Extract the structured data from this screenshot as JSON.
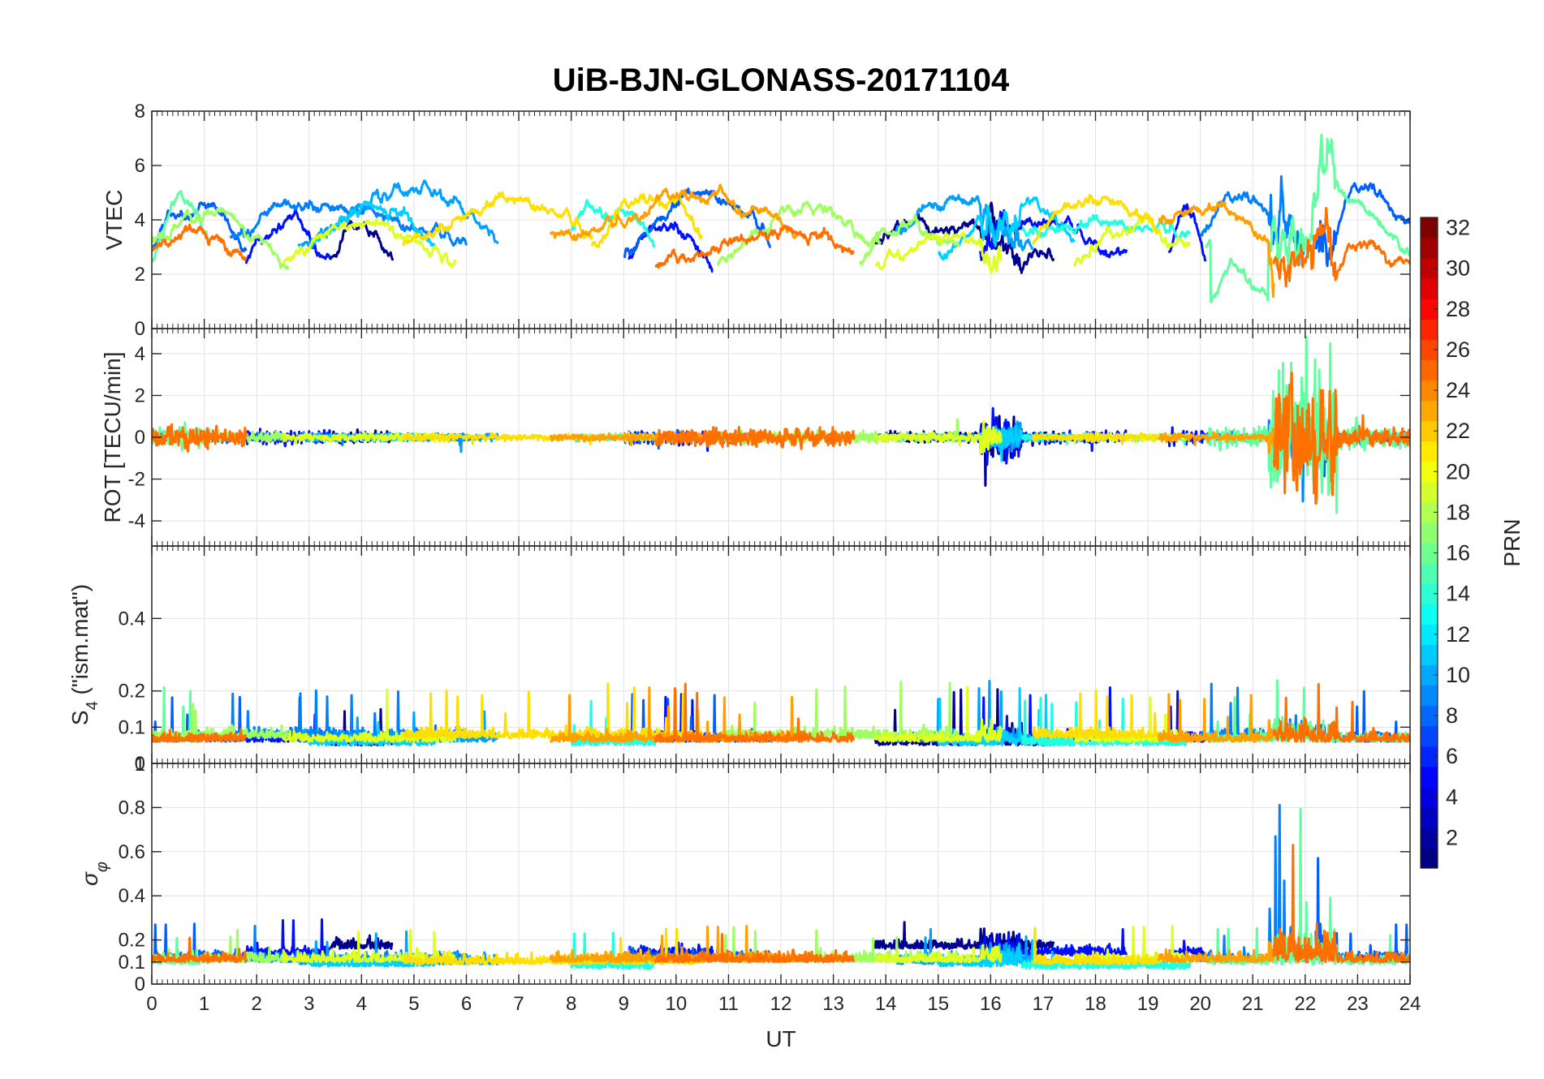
{
  "chart_data": {
    "type": "line",
    "title": "UiB-BJN-GLONASS-20171104",
    "xlabel": "UT",
    "xlim": [
      0,
      24
    ],
    "xticks": [
      0,
      1,
      2,
      3,
      4,
      5,
      6,
      7,
      8,
      9,
      10,
      11,
      12,
      13,
      14,
      15,
      16,
      17,
      18,
      19,
      20,
      21,
      22,
      23,
      24
    ],
    "grid": true,
    "panels": [
      {
        "id": "vtec",
        "ylabel": "VTEC",
        "ylim": [
          0,
          8
        ],
        "yticks": [
          0,
          2,
          4,
          6,
          8
        ],
        "ytick_labels": [
          "0",
          "2",
          "4",
          "6",
          "8"
        ]
      },
      {
        "id": "rot",
        "ylabel": "ROT [TECU/min]",
        "ylim": [
          -5.2,
          5.2
        ],
        "yticks": [
          -4,
          -2,
          0,
          2,
          4
        ],
        "ytick_labels": [
          "-4",
          "-2",
          "0",
          "2",
          "4"
        ]
      },
      {
        "id": "s4",
        "ylabel_main": "S",
        "ylabel_sub": "4",
        "ylabel_rest": " (\"ism.mat\")",
        "ylim": [
          0,
          0.6
        ],
        "yticks": [
          0,
          0.1,
          0.2,
          0.4
        ],
        "ytick_labels": [
          "0",
          "0.1",
          "0.2",
          "0.4"
        ]
      },
      {
        "id": "sigma",
        "ylabel_main": "σ",
        "ylabel_sub": "φ",
        "ylim": [
          0,
          1
        ],
        "yticks": [
          0,
          0.1,
          0.2,
          0.4,
          0.6,
          0.8
        ],
        "ytick_labels": [
          "0",
          "0.1",
          "0.2",
          "0.4",
          "0.6",
          "0.8"
        ],
        "extra_top_label": "1"
      }
    ],
    "colorbar": {
      "label": "PRN",
      "range": [
        1,
        32
      ],
      "ticks": [
        2,
        4,
        6,
        8,
        10,
        12,
        14,
        16,
        18,
        20,
        22,
        24,
        26,
        28,
        30,
        32
      ],
      "colormap": "jet"
    },
    "series": [
      {
        "prn": 1,
        "color": "#00008f",
        "segments": [
          [
            3.4,
            4.6
          ],
          [
            13.8,
            17.2
          ]
        ],
        "vtec_base": 3.6,
        "vtec_amp": 1.2,
        "rot_amp": 0.45,
        "s4_base": 0.07,
        "sigma_base": 0.19
      },
      {
        "prn": 3,
        "color": "#0010ff",
        "segments": [
          [
            1.8,
            3.4
          ],
          [
            9.1,
            10.7
          ],
          [
            15.8,
            18.6
          ],
          [
            19.4,
            20.1
          ]
        ],
        "vtec_base": 3.4,
        "vtec_amp": 1.6,
        "rot_amp": 0.6,
        "s4_base": 0.08,
        "sigma_base": 0.16
      },
      {
        "prn": 5,
        "color": "#005fff",
        "segments": [
          [
            0.0,
            1.8
          ],
          [
            9.0,
            11.8
          ],
          [
            22.2,
            24.0
          ]
        ],
        "vtec_base": 3.9,
        "vtec_amp": 1.8,
        "rot_amp": 0.5,
        "s4_base": 0.08,
        "sigma_base": 0.14
      },
      {
        "prn": 7,
        "color": "#0080ff",
        "segments": [
          [
            1.5,
            6.0
          ],
          [
            20.0,
            22.0
          ]
        ],
        "vtec_base": 4.0,
        "vtec_amp": 1.5,
        "rot_amp": 0.35,
        "s4_base": 0.09,
        "sigma_base": 0.13
      },
      {
        "prn": 9,
        "color": "#00a0ff",
        "segments": [
          [
            2.8,
            6.6
          ],
          [
            14.2,
            16.8
          ]
        ],
        "vtec_base": 4.1,
        "vtec_amp": 1.6,
        "rot_amp": 0.35,
        "s4_base": 0.08,
        "sigma_base": 0.12
      },
      {
        "prn": 11,
        "color": "#00d0ff",
        "segments": [
          [
            3.0,
            5.4
          ],
          [
            15.0,
            17.6
          ]
        ],
        "vtec_base": 3.8,
        "vtec_amp": 1.2,
        "rot_amp": 0.3,
        "s4_base": 0.07,
        "sigma_base": 0.11
      },
      {
        "prn": 13,
        "color": "#20ffdf",
        "segments": [
          [
            8.0,
            9.6
          ],
          [
            16.6,
            19.8
          ]
        ],
        "vtec_base": 4.2,
        "vtec_amp": 0.9,
        "rot_amp": 0.3,
        "s4_base": 0.07,
        "sigma_base": 0.1
      },
      {
        "prn": 15,
        "color": "#60ff9f",
        "segments": [
          [
            0.0,
            1.1
          ],
          [
            20.1,
            21.5
          ],
          [
            21.4,
            24.0
          ]
        ],
        "vtec_base": 3.6,
        "vtec_amp": 1.7,
        "rot_amp": 0.9,
        "s4_base": 0.08,
        "sigma_base": 0.12
      },
      {
        "prn": 17,
        "color": "#9fff60",
        "segments": [
          [
            0.0,
            2.6
          ],
          [
            10.8,
            13.9
          ],
          [
            13.5,
            15.4
          ]
        ],
        "vtec_base": 3.6,
        "vtec_amp": 1.3,
        "rot_amp": 0.45,
        "s4_base": 0.09,
        "sigma_base": 0.13
      },
      {
        "prn": 19,
        "color": "#dfff20",
        "segments": [
          [
            2.5,
            5.8
          ],
          [
            13.8,
            16.2
          ],
          [
            17.6,
            19.8
          ]
        ],
        "vtec_base": 3.4,
        "vtec_amp": 1.0,
        "rot_amp": 0.35,
        "s4_base": 0.08,
        "sigma_base": 0.13
      },
      {
        "prn": 21,
        "color": "#ffdf00",
        "segments": [
          [
            4.8,
            8.4
          ],
          [
            8.4,
            10.5
          ],
          [
            16.8,
            19.2
          ]
        ],
        "vtec_base": 4.2,
        "vtec_amp": 1.2,
        "rot_amp": 0.3,
        "s4_base": 0.09,
        "sigma_base": 0.12
      },
      {
        "prn": 23,
        "color": "#ffa000",
        "segments": [
          [
            7.6,
            12.3
          ],
          [
            19.2,
            21.4
          ]
        ],
        "vtec_base": 4.4,
        "vtec_amp": 1.0,
        "rot_amp": 0.35,
        "s4_base": 0.08,
        "sigma_base": 0.13
      },
      {
        "prn": 25,
        "color": "#ff7000",
        "segments": [
          [
            0.0,
            1.8
          ],
          [
            9.6,
            13.4
          ],
          [
            21.4,
            24.0
          ]
        ],
        "vtec_base": 3.4,
        "vtec_amp": 0.9,
        "rot_amp": 0.8,
        "s4_base": 0.08,
        "sigma_base": 0.13
      }
    ]
  }
}
